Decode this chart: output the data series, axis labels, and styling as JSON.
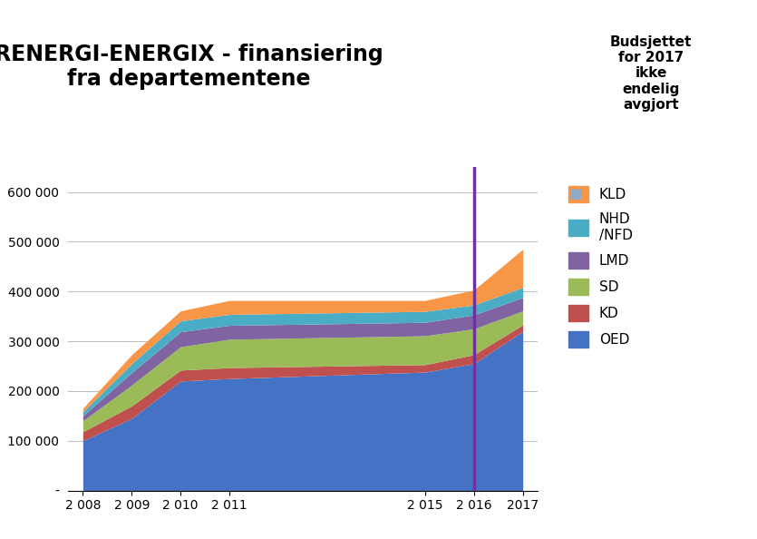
{
  "title": "RENERGI-ENERGIX - finansiering\nfra departementene",
  "years": [
    2008,
    2009,
    2010,
    2011,
    2015,
    2016,
    2017
  ],
  "series": {
    "OED": [
      100000,
      145000,
      220000,
      225000,
      238000,
      255000,
      320000
    ],
    "KD": [
      18000,
      25000,
      22000,
      22000,
      15000,
      18000,
      13000
    ],
    "SD": [
      22000,
      42000,
      47000,
      57000,
      58000,
      52000,
      28000
    ],
    "LMD": [
      10000,
      25000,
      30000,
      28000,
      27000,
      28000,
      27000
    ],
    "NHD/NFD": [
      8000,
      18000,
      22000,
      22000,
      22000,
      20000,
      20000
    ],
    "KLD": [
      7000,
      18000,
      20000,
      28000,
      22000,
      30000,
      77000
    ]
  },
  "colors": {
    "OED": "#4472C4",
    "KD": "#C0504D",
    "SD": "#9BBB59",
    "LMD": "#8064A2",
    "NHD/NFD": "#4BACC6",
    "KLD": "#F79646"
  },
  "vline_x": 2016,
  "vline_color": "#7030A0",
  "annotation_text": "Budsjettet\nfor 2017\nikke\nendelig\navgjort",
  "annotation_marker_color": "#8FA9C7",
  "ylim": [
    0,
    650000
  ],
  "yticks": [
    0,
    100000,
    200000,
    300000,
    400000,
    500000,
    600000
  ],
  "ytick_labels": [
    "-",
    "100 000",
    "200 000",
    "300 000",
    "400 000",
    "500 000",
    "600 000"
  ],
  "background_color": "#FFFFFF",
  "figsize": [
    8.35,
    5.94
  ],
  "dpi": 100
}
